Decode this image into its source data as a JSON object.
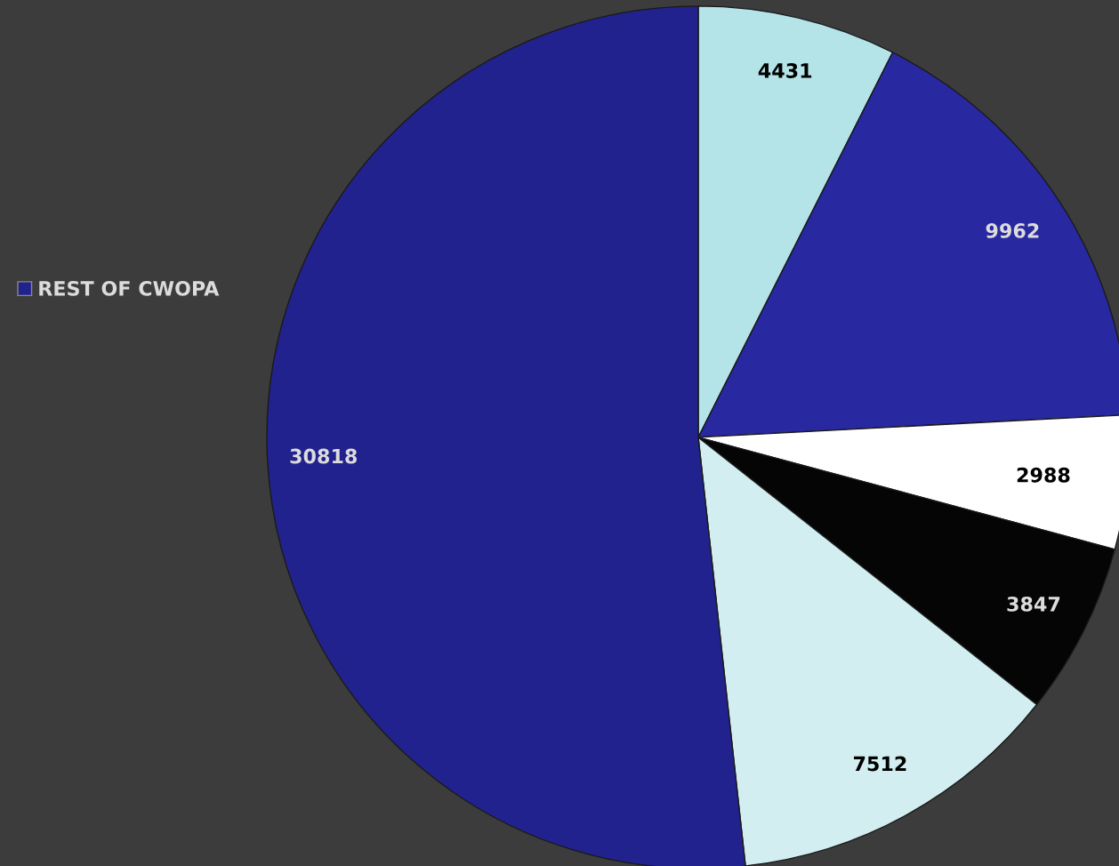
{
  "chart_data": {
    "type": "pie",
    "categories": [
      null,
      null,
      null,
      null,
      null,
      "REST OF CWOPA"
    ],
    "values": [
      4431,
      9962,
      2988,
      3847,
      7512,
      30818
    ],
    "colors": [
      "#b4e4e8",
      "#2828a0",
      "#ffffff",
      "#050505",
      "#d2eef0",
      "#22228f"
    ],
    "data_labels": true,
    "legend": "left"
  }
}
